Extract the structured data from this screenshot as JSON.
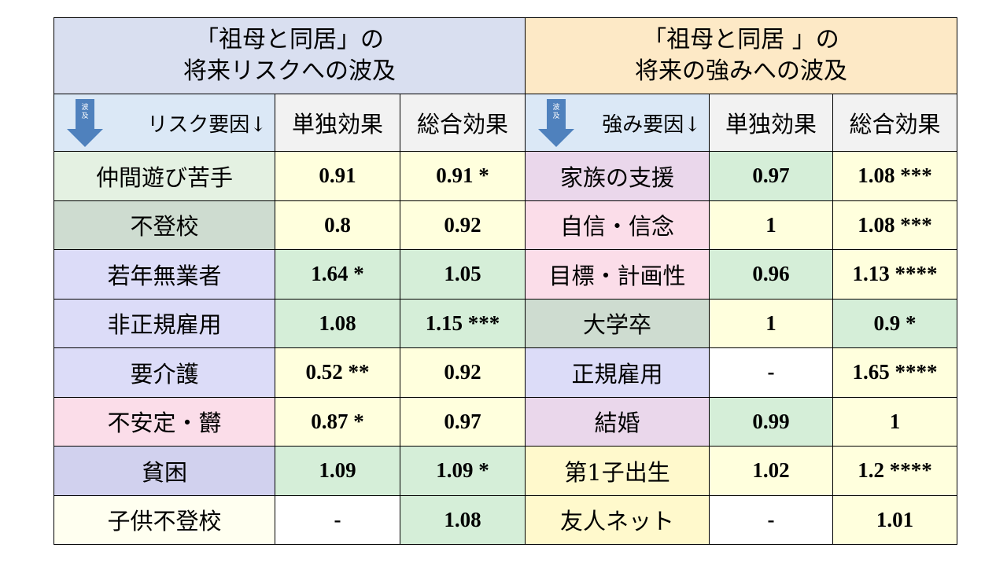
{
  "left_title": [
    "「祖母と同居」の",
    "将来リスクへの波及"
  ],
  "right_title": [
    "「祖母と同居 」の",
    "将来の強みへの波及"
  ],
  "header": {
    "arrow_text": [
      "波",
      "及"
    ],
    "risk_factor": "リスク要因↓",
    "strength_factor": "強み要因↓",
    "single_effect": "単独効果",
    "total_effect": "総合効果"
  },
  "rows": [
    {
      "risk": "仲間遊び苦手",
      "risk_single": "0.91",
      "risk_total": "0.91 *",
      "strength": "家族の支援",
      "str_single": "0.97",
      "str_total": "1.08 ***"
    },
    {
      "risk": "不登校",
      "risk_single": "0.8",
      "risk_total": "0.92",
      "strength": "自信・信念",
      "str_single": "1",
      "str_total": "1.08 ***"
    },
    {
      "risk": "若年無業者",
      "risk_single": "1.64 *",
      "risk_total": "1.05",
      "strength": "目標・計画性",
      "str_single": "0.96",
      "str_total": "1.13 ****"
    },
    {
      "risk": "非正規雇用",
      "risk_single": "1.08",
      "risk_total": "1.15 ***",
      "strength": "大学卒",
      "str_single": "1",
      "str_total": "0.9 *"
    },
    {
      "risk": "要介護",
      "risk_single": "0.52 **",
      "risk_total": "0.92",
      "strength": "正規雇用",
      "str_single": "-",
      "str_total": "1.65 ****"
    },
    {
      "risk": "不安定・欝",
      "risk_single": "0.87 *",
      "risk_total": "0.97",
      "strength": "結婚",
      "str_single": "0.99",
      "str_total": "1"
    },
    {
      "risk": "貧困",
      "risk_single": "1.09",
      "risk_total": "1.09 *",
      "strength": "第1子出生",
      "str_single": "1.02",
      "str_total": "1.2 ****"
    },
    {
      "risk": "子供不登校",
      "risk_single": "-",
      "risk_total": "1.08",
      "strength": "友人ネット",
      "str_single": "-",
      "str_total": "1.01"
    }
  ],
  "colors": {
    "left_title_bg": "#d9dff0",
    "right_title_bg": "#fde9c6",
    "arrow": "#4f81bd"
  }
}
